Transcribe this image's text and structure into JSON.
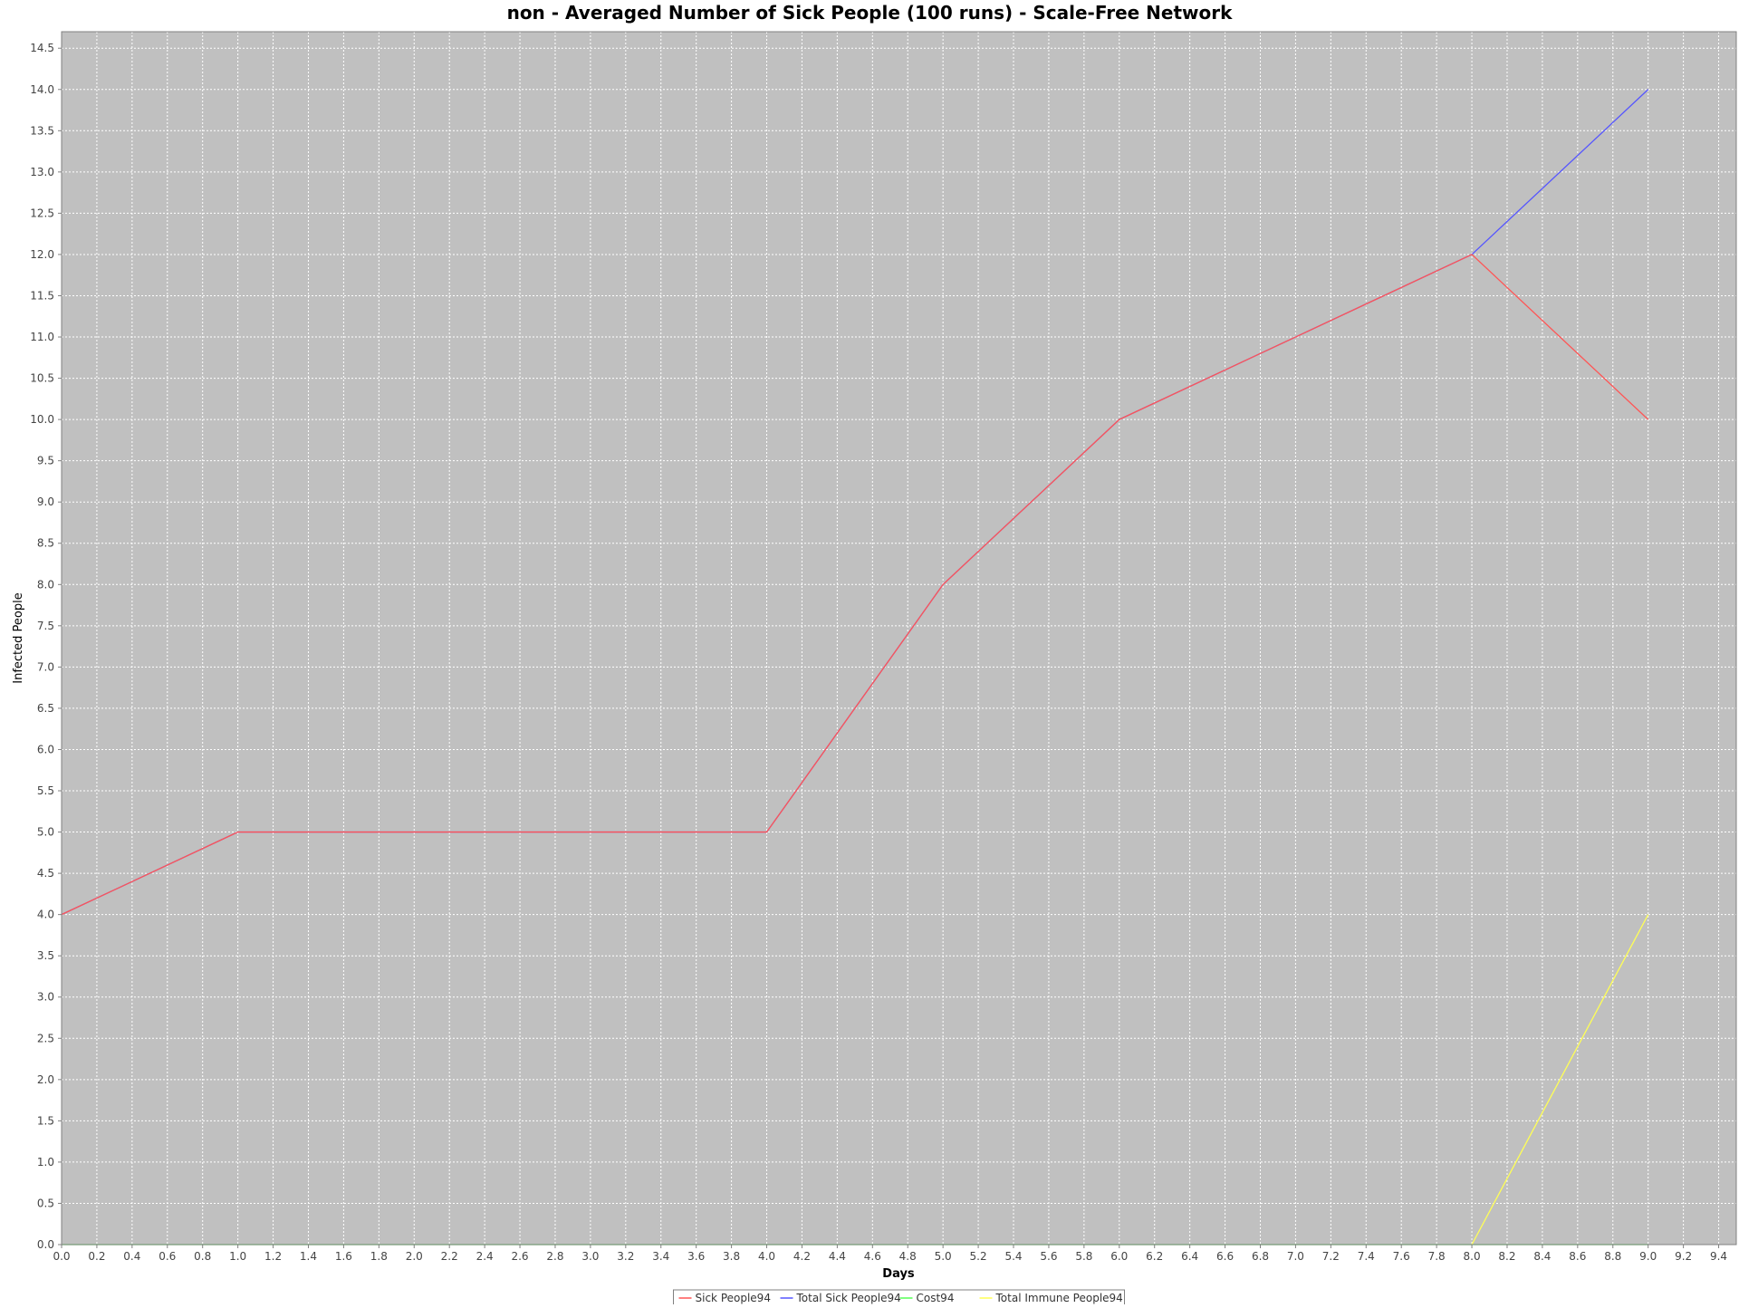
{
  "chart_data": {
    "type": "line",
    "title": "non - Averaged Number of Sick People (100 runs) - Scale-Free Network",
    "xlabel": "Days",
    "ylabel": "Infected People",
    "xlim": [
      0.0,
      9.5
    ],
    "ylim": [
      0.0,
      14.7
    ],
    "x_ticks": [
      "0.0",
      "0.2",
      "0.4",
      "0.6",
      "0.8",
      "1.0",
      "1.2",
      "1.4",
      "1.6",
      "1.8",
      "2.0",
      "2.2",
      "2.4",
      "2.6",
      "2.8",
      "3.0",
      "3.2",
      "3.4",
      "3.6",
      "3.8",
      "4.0",
      "4.2",
      "4.4",
      "4.6",
      "4.8",
      "5.0",
      "5.2",
      "5.4",
      "5.6",
      "5.8",
      "6.0",
      "6.2",
      "6.4",
      "6.6",
      "6.8",
      "7.0",
      "7.2",
      "7.4",
      "7.6",
      "7.8",
      "8.0",
      "8.2",
      "8.4",
      "8.6",
      "8.8",
      "9.0",
      "9.2",
      "9.4"
    ],
    "y_ticks": [
      "0.0",
      "0.5",
      "1.0",
      "1.5",
      "2.0",
      "2.5",
      "3.0",
      "3.5",
      "4.0",
      "4.5",
      "5.0",
      "5.5",
      "6.0",
      "6.5",
      "7.0",
      "7.5",
      "8.0",
      "8.5",
      "9.0",
      "9.5",
      "10.0",
      "10.5",
      "11.0",
      "11.5",
      "12.0",
      "12.5",
      "13.0",
      "13.5",
      "14.0",
      "14.5"
    ],
    "grid": true,
    "plot_background": "#c0c0c0",
    "gridline_color": "#ffffff",
    "legend_placement": "bottom-center",
    "series": [
      {
        "name": "Sick People94",
        "color": "#ff5555",
        "x": [
          0,
          1,
          2,
          3,
          4,
          5,
          6,
          7,
          8,
          9
        ],
        "y": [
          4,
          5,
          5,
          5,
          5,
          8,
          10,
          11,
          12,
          10
        ]
      },
      {
        "name": "Total Sick People94",
        "color": "#5555ff",
        "x": [
          0,
          1,
          2,
          3,
          4,
          5,
          6,
          7,
          8,
          9
        ],
        "y": [
          4,
          5,
          5,
          5,
          5,
          8,
          10,
          11,
          12,
          14
        ]
      },
      {
        "name": "Cost94",
        "color": "#55ff55",
        "x": [
          0,
          1,
          2,
          3,
          4,
          5,
          6,
          7,
          8,
          9
        ],
        "y": [
          0,
          0,
          0,
          0,
          0,
          0,
          0,
          0,
          0,
          0
        ]
      },
      {
        "name": "Total Immune People94",
        "color": "#ffff55",
        "x": [
          8,
          9
        ],
        "y": [
          0,
          4
        ]
      }
    ]
  }
}
